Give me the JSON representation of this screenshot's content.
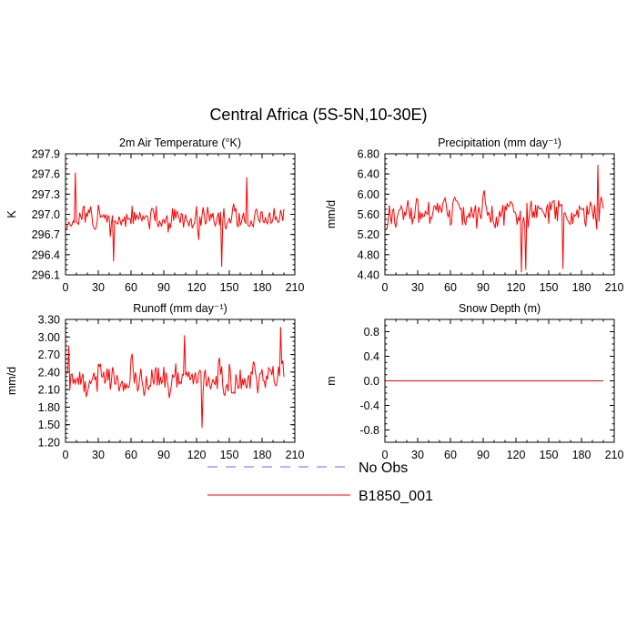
{
  "figure_title": "Central Africa (5S-5N,10-30E)",
  "legend": [
    {
      "label": "No Obs",
      "color": "#6666ff",
      "dash": true
    },
    {
      "label": "B1850_001",
      "color": "#ff0000",
      "dash": false
    }
  ],
  "chart_data": [
    {
      "type": "line",
      "title": "2m Air Temperature (°K)",
      "ylabel": "K",
      "xlim": [
        0,
        210
      ],
      "ylim": [
        296.1,
        297.9
      ],
      "xticks": [
        "0",
        "30",
        "60",
        "90",
        "120",
        "150",
        "180",
        "210"
      ],
      "yticks": [
        "296.1",
        "296.4",
        "296.7",
        "297.0",
        "297.3",
        "297.6",
        "297.9"
      ],
      "series": [
        {
          "name": "B1850_001",
          "seed": 11,
          "n": 200,
          "mean": 296.92,
          "amp": 0.28,
          "spikes": [
            [
              8,
              297.62
            ],
            [
              142,
              296.22
            ],
            [
              165,
              297.55
            ],
            [
              43,
              296.3
            ]
          ]
        }
      ]
    },
    {
      "type": "line",
      "title": "Precipitation (mm day⁻¹)",
      "ylabel": "mm/d",
      "xlim": [
        0,
        210
      ],
      "ylim": [
        4.4,
        6.8
      ],
      "xticks": [
        "0",
        "30",
        "60",
        "90",
        "120",
        "150",
        "180",
        "210"
      ],
      "yticks": [
        "4.40",
        "4.80",
        "5.20",
        "5.60",
        "6.00",
        "6.40",
        "6.80"
      ],
      "series": [
        {
          "name": "B1850_001",
          "seed": 23,
          "n": 200,
          "mean": 5.62,
          "amp": 0.42,
          "spikes": [
            [
              124,
              4.45
            ],
            [
              194,
              6.58
            ],
            [
              128,
              4.5
            ],
            [
              162,
              4.52
            ]
          ]
        }
      ]
    },
    {
      "type": "line",
      "title": "Runoff (mm day⁻¹)",
      "ylabel": "mm/d",
      "xlim": [
        0,
        210
      ],
      "ylim": [
        1.2,
        3.3
      ],
      "xticks": [
        "0",
        "30",
        "60",
        "90",
        "120",
        "150",
        "180",
        "210"
      ],
      "yticks": [
        "1.20",
        "1.50",
        "1.80",
        "2.10",
        "2.40",
        "2.70",
        "3.00",
        "3.30"
      ],
      "series": [
        {
          "name": "B1850_001",
          "seed": 37,
          "n": 200,
          "mean": 2.28,
          "amp": 0.42,
          "spikes": [
            [
              196,
              3.17
            ],
            [
              2,
              2.85
            ],
            [
              124,
              1.45
            ],
            [
              108,
              3.03
            ]
          ]
        }
      ]
    },
    {
      "type": "line",
      "title": "Snow Depth (m)",
      "ylabel": "m",
      "xlim": [
        0,
        210
      ],
      "ylim": [
        -1.0,
        1.0
      ],
      "xticks": [
        "0",
        "30",
        "60",
        "90",
        "120",
        "150",
        "180",
        "210"
      ],
      "yticks": [
        "-0.8",
        "-0.4",
        "0.0",
        "0.4",
        "0.8"
      ],
      "series": [
        {
          "name": "B1850_001",
          "seed": 0,
          "n": 200,
          "mean": 0.0,
          "amp": 0.0,
          "spikes": []
        }
      ]
    }
  ]
}
